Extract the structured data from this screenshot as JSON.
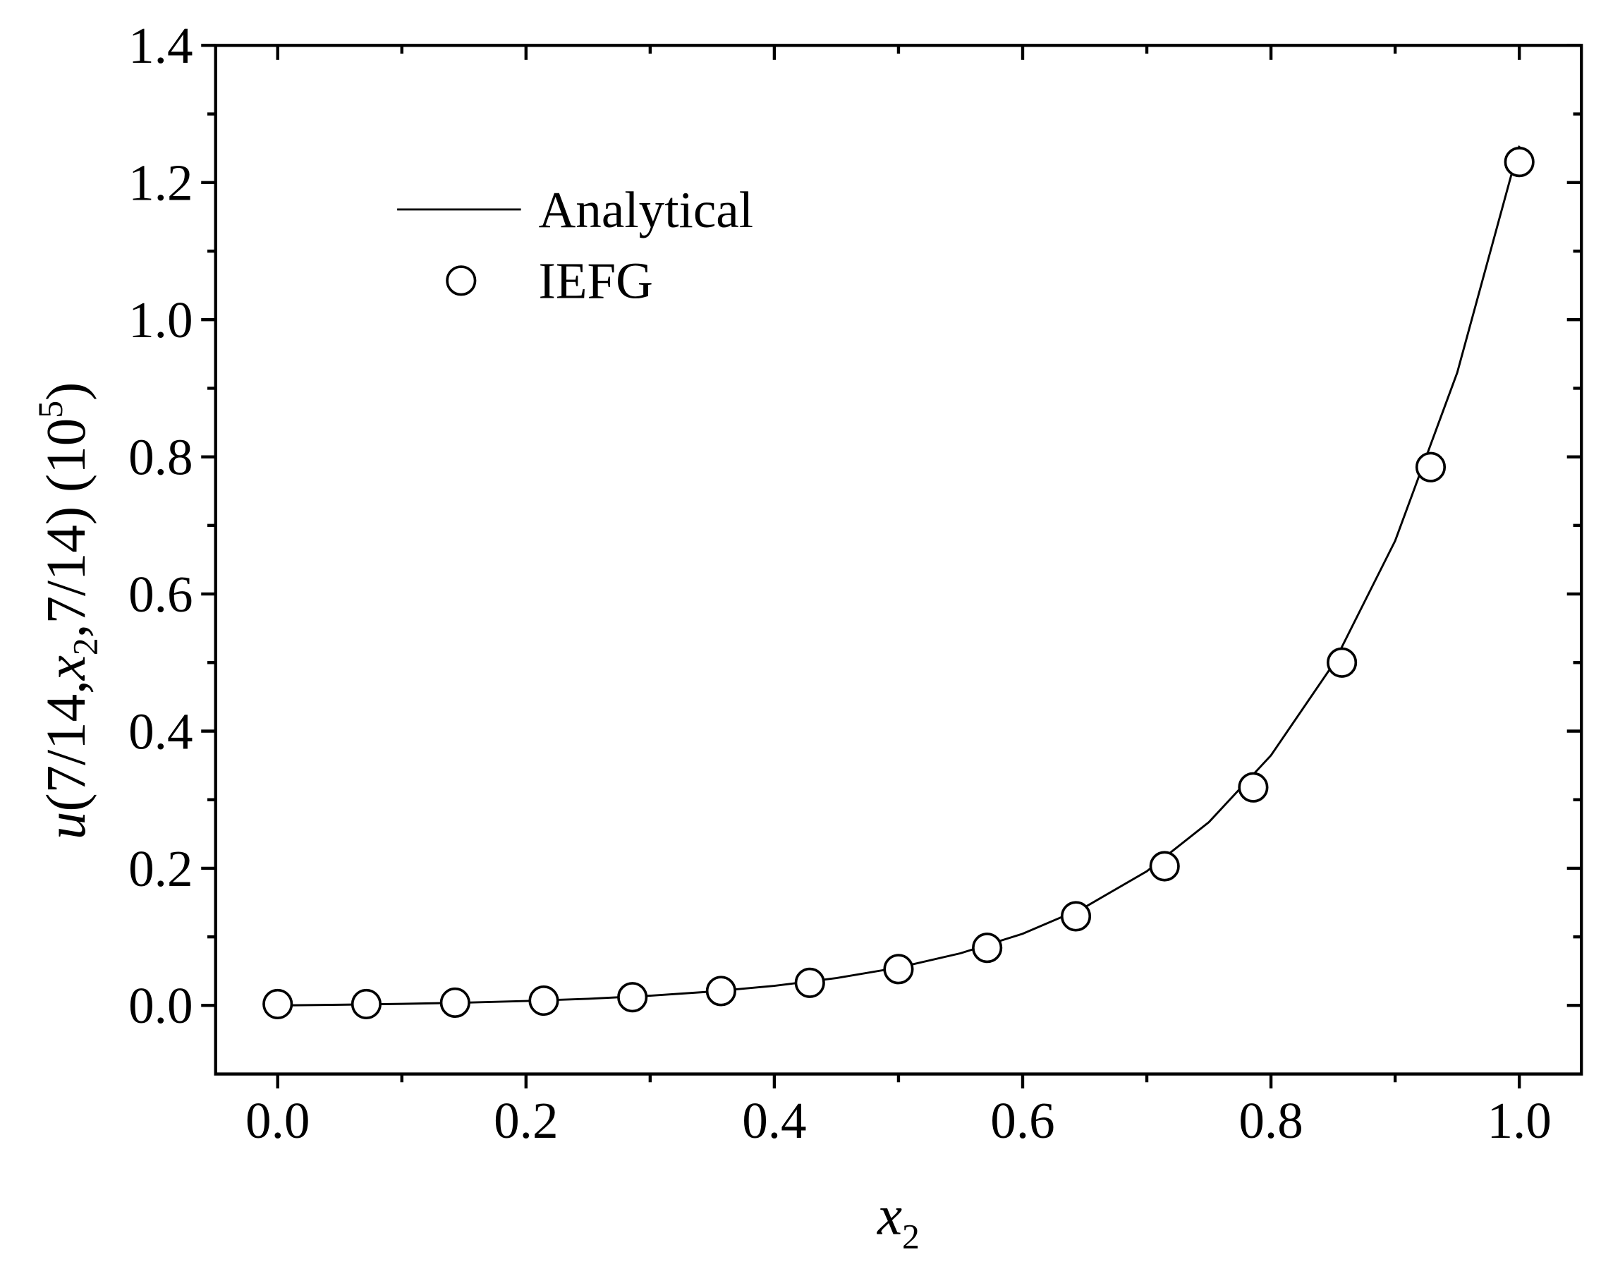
{
  "chart_data": {
    "type": "line",
    "xlabel": [
      "x",
      "2"
    ],
    "ylabel": [
      "u",
      "(7/14,",
      "x",
      "2",
      ",7/14) (10",
      "5",
      ")"
    ],
    "xlim": [
      -0.05,
      1.05
    ],
    "ylim": [
      -0.1,
      1.4
    ],
    "xticks": [
      {
        "value": 0,
        "label": "0.0"
      },
      {
        "value": 0.2,
        "label": "0.2"
      },
      {
        "value": 0.4,
        "label": "0.4"
      },
      {
        "value": 0.6,
        "label": "0.6"
      },
      {
        "value": 0.8,
        "label": "0.8"
      },
      {
        "value": 1,
        "label": "1.0"
      }
    ],
    "yticks": [
      {
        "value": 0,
        "label": "0.0"
      },
      {
        "value": 0.2,
        "label": "0.2"
      },
      {
        "value": 0.4,
        "label": "0.4"
      },
      {
        "value": 0.6,
        "label": "0.6"
      },
      {
        "value": 0.8,
        "label": "0.8"
      },
      {
        "value": 1,
        "label": "1.0"
      },
      {
        "value": 1.2,
        "label": "1.2"
      },
      {
        "value": 1.4,
        "label": "1.4"
      }
    ],
    "grid": false,
    "legend": "upper left",
    "series": [
      {
        "name": "Analytical",
        "type": "line",
        "color": "#000000",
        "x": [
          0,
          0.05,
          0.1,
          0.15,
          0.2,
          0.25,
          0.3,
          0.35,
          0.4,
          0.45,
          0.5,
          0.55,
          0.6,
          0.65,
          0.7,
          0.75,
          0.8,
          0.85,
          0.9,
          0.95,
          1.0
        ],
        "values": [
          0,
          0.001,
          0.0023,
          0.004,
          0.0065,
          0.0097,
          0.0142,
          0.0203,
          0.0286,
          0.0399,
          0.0552,
          0.0761,
          0.1045,
          0.1432,
          0.1957,
          0.2673,
          0.3647,
          0.4972,
          0.6775,
          0.9228,
          1.2537
        ]
      },
      {
        "name": "IEFG",
        "type": "scatter",
        "color": "#000000",
        "x": [
          0,
          0.0714,
          0.1429,
          0.2143,
          0.2857,
          0.3571,
          0.4286,
          0.5,
          0.5714,
          0.6429,
          0.7143,
          0.7857,
          0.8571,
          0.9286,
          1.0
        ],
        "values": [
          0.002,
          0.002,
          0.004,
          0.007,
          0.012,
          0.021,
          0.033,
          0.053,
          0.084,
          0.13,
          0.203,
          0.318,
          0.5,
          0.785,
          1.23
        ]
      }
    ]
  }
}
